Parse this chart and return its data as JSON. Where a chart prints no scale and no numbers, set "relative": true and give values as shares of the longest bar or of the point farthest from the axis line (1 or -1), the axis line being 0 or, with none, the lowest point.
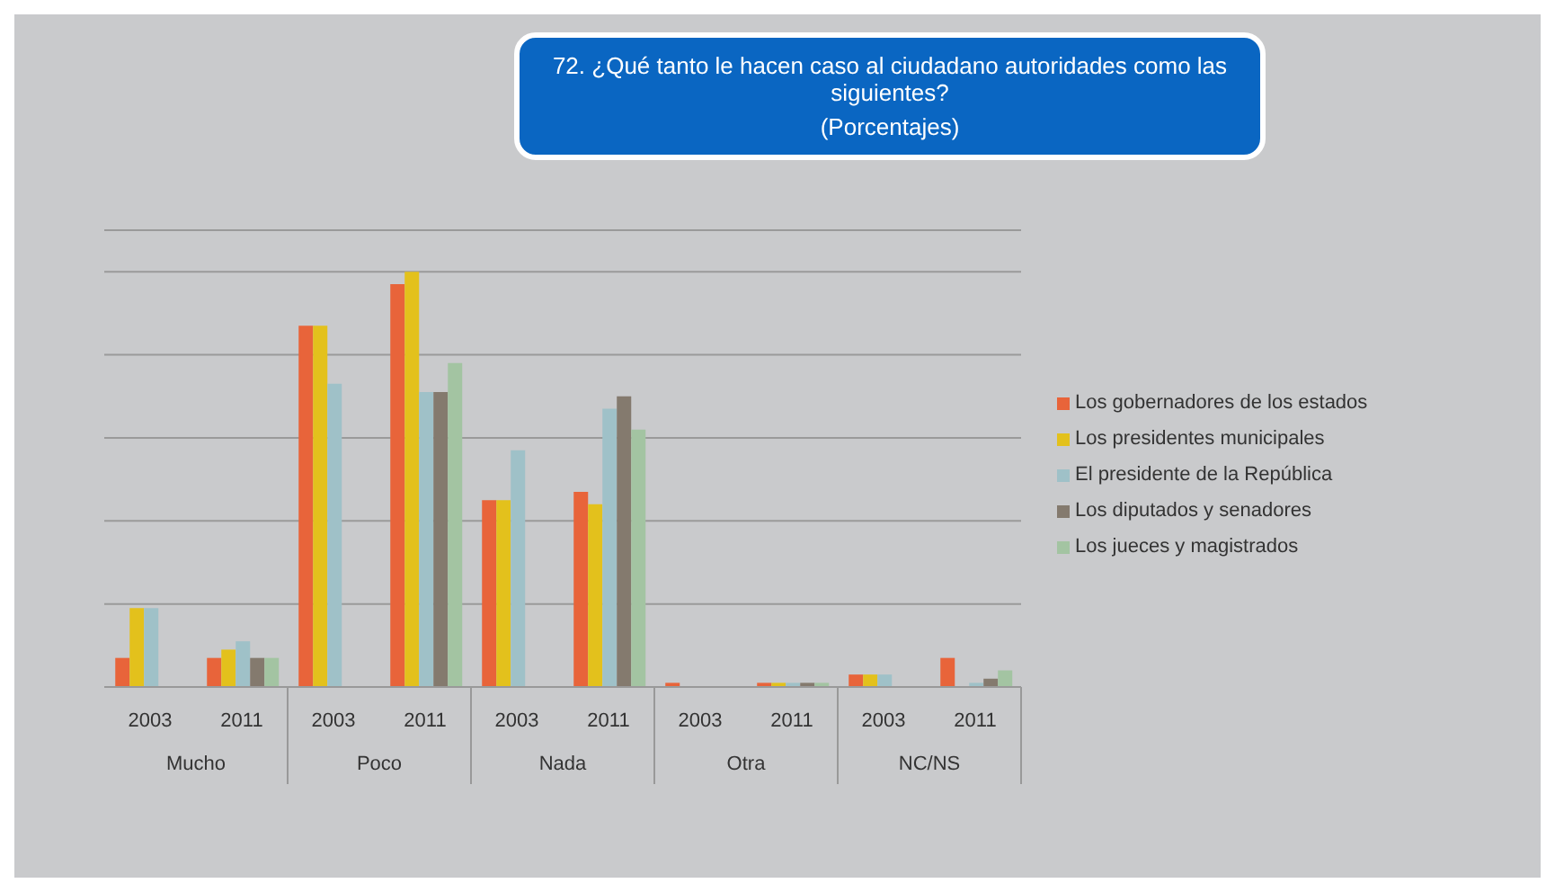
{
  "chart_data": {
    "type": "bar",
    "title": "72. ¿Qué tanto le hacen caso al ciudadano autoridades como las siguientes?",
    "subtitle": "(Porcentajes)",
    "relative": true,
    "categories": [
      "2003",
      "2011",
      "2003",
      "2011",
      "2003",
      "2011",
      "2003",
      "2011",
      "2003",
      "2011"
    ],
    "annotations": [
      "Mucho",
      "Poco",
      "Nada",
      "Otra",
      "NC/NS"
    ],
    "series": [
      {
        "name": "Los gobernadores de los estados",
        "color": "#e8643a",
        "values": [
          0.07,
          0.07,
          0.87,
          0.97,
          0.45,
          0.47,
          0.01,
          0.01,
          0.03,
          0.07
        ]
      },
      {
        "name": "Los presidentes municipales",
        "color": "#e3c11c",
        "values": [
          0.19,
          0.09,
          0.87,
          1,
          0.45,
          0.44,
          null,
          0.01,
          0.03,
          null
        ]
      },
      {
        "name": "El presidente de la República",
        "color": "#9fc1c8",
        "values": [
          0.19,
          0.11,
          0.73,
          0.71,
          0.57,
          0.67,
          null,
          0.01,
          0.03,
          0.01
        ]
      },
      {
        "name": "Los diputados y senadores",
        "color": "#847a6e",
        "values": [
          null,
          0.07,
          null,
          0.71,
          null,
          0.7,
          null,
          0.01,
          null,
          0.02
        ]
      },
      {
        "name": "Los jueces y magistrados",
        "color": "#a3c4a2",
        "values": [
          null,
          0.07,
          null,
          0.78,
          null,
          0.62,
          null,
          0.01,
          null,
          0.04
        ]
      }
    ],
    "grid": "y",
    "legend": "right"
  }
}
